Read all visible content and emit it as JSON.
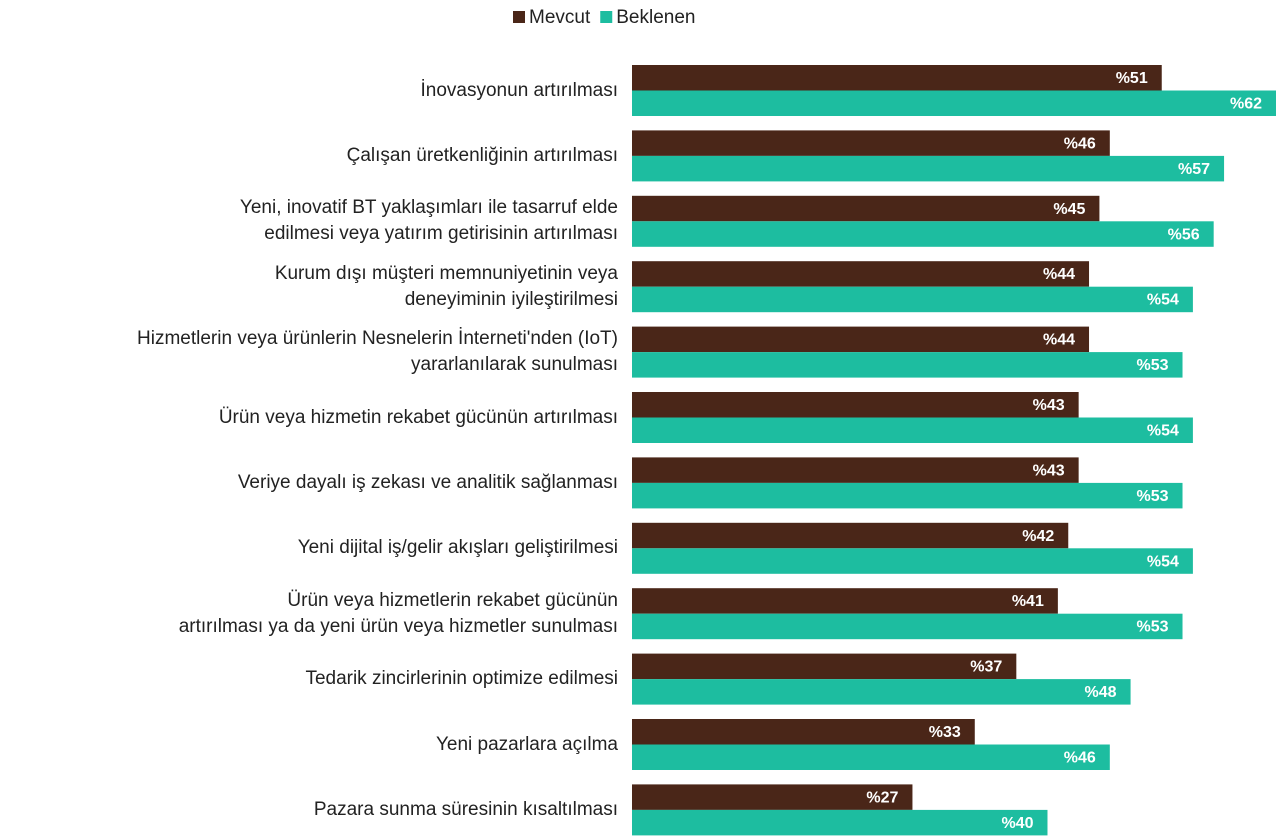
{
  "chart_data": {
    "type": "bar",
    "orientation": "horizontal",
    "categories": [
      "İnovasyonun artırılması",
      "Çalışan üretkenliğinin artırılması",
      "Yeni, inovatif BT yaklaşımları ile tasarruf elde\nedilmesi veya yatırım getirisinin artırılması",
      "Kurum dışı müşteri memnuniyetinin veya\ndeneyiminin iyileştirilmesi",
      "Hizmetlerin veya ürünlerin Nesnelerin İnterneti'nden (IoT)\nyararlanılarak sunulması",
      "Ürün veya hizmetin rekabet gücünün artırılması",
      "Veriye dayalı iş zekası ve analitik sağlanması",
      "Yeni dijital iş/gelir akışları geliştirilmesi",
      "Ürün veya hizmetlerin rekabet gücünün\nartırılması ya da yeni ürün veya hizmetler sunulması",
      "Tedarik zincirlerinin optimize edilmesi",
      "Yeni pazarlara açılma",
      "Pazara sunma süresinin kısaltılması"
    ],
    "series": [
      {
        "name": "Mevcut",
        "color": "#4a2618",
        "values": [
          51,
          46,
          45,
          44,
          44,
          43,
          43,
          42,
          41,
          37,
          33,
          27
        ],
        "value_labels": [
          "%51",
          "%46",
          "%45",
          "%44",
          "%44",
          "%43",
          "%43",
          "%42",
          "%41",
          "%37",
          "%33",
          "%27"
        ]
      },
      {
        "name": "Beklenen",
        "color": "#1dbda0",
        "values": [
          62,
          57,
          56,
          54,
          53,
          54,
          53,
          54,
          53,
          48,
          46,
          40
        ],
        "value_labels": [
          "%62",
          "%57",
          "%56",
          "%54",
          "%53",
          "%54",
          "%53",
          "%54",
          "%53",
          "%48",
          "%46",
          "%40"
        ]
      }
    ]
  }
}
